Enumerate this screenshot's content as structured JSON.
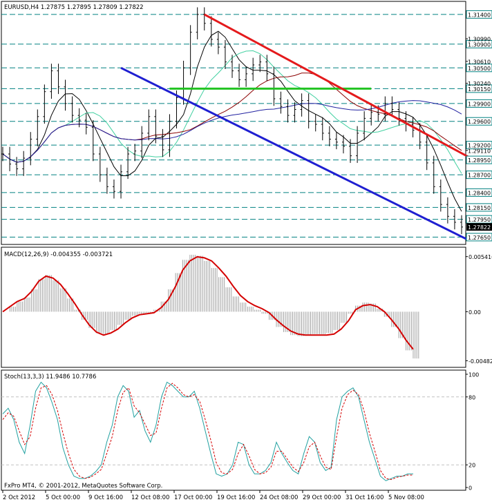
{
  "header": {
    "symbol_line": "EURUSD,H4  1.27875 1.27895 1.27809 1.27822"
  },
  "footer": {
    "copyright": "FxPro MT4, © 2001-2012, MetaQuotes Software Corp."
  },
  "colors": {
    "background": "#ffffff",
    "candles": "#000000",
    "level_lines": "#008080",
    "resistance_line": "#e41a1c",
    "support_line": "#1f1fd1",
    "horizontal_green": "#22c322",
    "macd_signal": "#d40000",
    "macd_histogram": "#a0a0a0",
    "stoch_main": "#20a0a0",
    "stoch_signal": "#d40000",
    "ma_fast": "#000000",
    "ma_red": "#8b0000",
    "ma_blue": "#2020a0",
    "ma_green": "#40d0a0"
  },
  "chart_data": [
    {
      "type": "line",
      "name": "EURUSD,H4",
      "ylim": [
        1.2755,
        1.3155
      ],
      "price_labels": [
        "1.31400",
        "1.30990",
        "1.30900",
        "1.30610",
        "1.30500",
        "1.30240",
        "1.30150",
        "1.29900",
        "1.29600",
        "1.29110",
        "1.29200",
        "1.28950",
        "1.28700",
        "1.28400",
        "1.28150",
        "1.27950",
        "1.27822",
        "1.27650"
      ],
      "boxed_levels": [
        {
          "value": 1.314,
          "label": "1.31400"
        },
        {
          "value": 1.309,
          "label": "1.30900"
        },
        {
          "value": 1.305,
          "label": "1.30500"
        },
        {
          "value": 1.3015,
          "label": "1.30150"
        },
        {
          "value": 1.299,
          "label": "1.29900"
        },
        {
          "value": 1.296,
          "label": "1.29600"
        },
        {
          "value": 1.292,
          "label": "1.29200"
        },
        {
          "value": 1.2895,
          "label": "1.28950"
        },
        {
          "value": 1.287,
          "label": "1.28700"
        },
        {
          "value": 1.284,
          "label": "1.28400"
        },
        {
          "value": 1.2815,
          "label": "1.28150"
        },
        {
          "value": 1.2795,
          "label": "1.27950"
        },
        {
          "value": 1.2765,
          "label": "1.27650"
        }
      ],
      "plain_ticks": [
        {
          "value": 1.3099,
          "label": "1.30990"
        },
        {
          "value": 1.3061,
          "label": "1.30610"
        },
        {
          "value": 1.3024,
          "label": "1.30240"
        },
        {
          "value": 1.2911,
          "label": "1.29110"
        }
      ],
      "current_price": {
        "value": 1.27822,
        "label": "1.27822"
      },
      "close_series": [
        1.2905,
        1.2888,
        1.288,
        1.2898,
        1.293,
        1.2968,
        1.301,
        1.3045,
        1.3018,
        1.299,
        1.297,
        1.2962,
        1.295,
        1.2905,
        1.287,
        1.285,
        1.2842,
        1.2875,
        1.2905,
        1.291,
        1.294,
        1.2968,
        1.2935,
        1.2912,
        1.296,
        1.3,
        1.305,
        1.311,
        1.314,
        1.3125,
        1.3098,
        1.3085,
        1.306,
        1.3045,
        1.303,
        1.304,
        1.3055,
        1.306,
        1.304,
        1.2998,
        1.2985,
        1.297,
        1.298,
        1.2995,
        1.296,
        1.2955,
        1.294,
        1.293,
        1.2925,
        1.2918,
        1.2902,
        1.294,
        1.2965,
        1.2975,
        1.2972,
        1.299,
        1.298,
        1.2965,
        1.2955,
        1.2945,
        1.2925,
        1.289,
        1.285,
        1.282,
        1.28,
        1.279,
        1.2782
      ],
      "resistance_line": [
        {
          "i": 29,
          "v": 1.314
        },
        {
          "i": 67,
          "v": 1.29
        }
      ],
      "support_line": [
        {
          "i": 17,
          "v": 1.305
        },
        {
          "i": 67,
          "v": 1.276
        }
      ],
      "horizontal_line": [
        {
          "i": 24,
          "v": 1.3015
        },
        {
          "i": 53,
          "v": 1.3015
        }
      ]
    },
    {
      "type": "line",
      "name": "MACD(12,26,9)",
      "title": "MACD(12,26,9) -0.004355 -0.003721",
      "ylim": [
        -0.0052,
        0.0058
      ],
      "tick_labels": [
        "0.005416",
        "0.00",
        "-0.004821"
      ],
      "signal": [
        0.0,
        0.0005,
        0.001,
        0.0013,
        0.002,
        0.003,
        0.0035,
        0.0033,
        0.0027,
        0.0018,
        0.0008,
        -0.0003,
        -0.0013,
        -0.002,
        -0.0023,
        -0.0021,
        -0.0017,
        -0.0011,
        -0.0006,
        -0.0003,
        -0.0002,
        -0.0001,
        0.0004,
        0.0012,
        0.0025,
        0.0041,
        0.005,
        0.0054,
        0.0053,
        0.005,
        0.0043,
        0.0035,
        0.0025,
        0.0016,
        0.001,
        0.0006,
        0.0003,
        -0.0001,
        -0.0008,
        -0.0014,
        -0.0019,
        -0.0022,
        -0.0023,
        -0.0023,
        -0.0023,
        -0.0023,
        -0.0022,
        -0.0017,
        -0.0009,
        0.0002,
        0.0006,
        0.0007,
        0.0005,
        0.0,
        -0.0008,
        -0.0017,
        -0.0028,
        -0.0037
      ],
      "histogram": [
        0.0,
        0.0005,
        0.001,
        0.0014,
        0.0022,
        0.0032,
        0.0036,
        0.0031,
        0.0023,
        0.0013,
        0.0002,
        -0.0008,
        -0.0016,
        -0.0021,
        -0.0022,
        -0.0018,
        -0.0013,
        -0.0008,
        -0.0004,
        -0.0002,
        -0.0001,
        0.0002,
        0.001,
        0.0022,
        0.0038,
        0.0051,
        0.0056,
        0.0055,
        0.005,
        0.0043,
        0.0034,
        0.0024,
        0.0015,
        0.0009,
        0.0005,
        0.0002,
        -0.0002,
        -0.0008,
        -0.0015,
        -0.002,
        -0.0023,
        -0.0024,
        -0.0023,
        -0.0022,
        -0.0022,
        -0.0021,
        -0.0018,
        -0.0011,
        -0.0002,
        0.0006,
        0.0009,
        0.0008,
        0.0003,
        -0.0005,
        -0.0015,
        -0.0026,
        -0.0038,
        -0.0046
      ]
    },
    {
      "type": "line",
      "name": "Stoch(13,3,3)",
      "title": "Stoch(13,3,3) 11.9486 10.7786",
      "ylim": [
        0,
        100
      ],
      "tick_labels": [
        "100",
        "80",
        "20",
        "0"
      ],
      "main": [
        65,
        70,
        60,
        40,
        30,
        55,
        85,
        93,
        88,
        75,
        60,
        35,
        20,
        10,
        8,
        8,
        10,
        14,
        20,
        40,
        55,
        80,
        90,
        85,
        62,
        68,
        50,
        40,
        55,
        80,
        93,
        90,
        85,
        80,
        80,
        85,
        70,
        50,
        30,
        12,
        10,
        12,
        20,
        40,
        38,
        20,
        12,
        12,
        15,
        22,
        40,
        30,
        22,
        15,
        12,
        30,
        45,
        40,
        22,
        15,
        18,
        60,
        80,
        85,
        88,
        80,
        60,
        40,
        25,
        10,
        6,
        8,
        10,
        10,
        12,
        12
      ],
      "signal": [
        60,
        66,
        63,
        50,
        38,
        45,
        70,
        88,
        90,
        82,
        68,
        48,
        30,
        16,
        10,
        8,
        9,
        12,
        16,
        30,
        45,
        68,
        84,
        88,
        72,
        66,
        56,
        46,
        48,
        70,
        88,
        92,
        88,
        82,
        80,
        82,
        76,
        60,
        42,
        22,
        13,
        12,
        16,
        30,
        38,
        28,
        16,
        12,
        13,
        18,
        32,
        32,
        25,
        18,
        14,
        22,
        36,
        40,
        28,
        18,
        16,
        45,
        70,
        82,
        86,
        82,
        68,
        48,
        32,
        15,
        8,
        7,
        9,
        10,
        11,
        11
      ]
    }
  ],
  "time_axis": {
    "labels": [
      "2 Oct 2012",
      "5 Oct 00:00",
      "9 Oct 16:00",
      "12 Oct 08:00",
      "17 Oct 00:00",
      "19 Oct 16:00",
      "24 Oct 08:00",
      "29 Oct 00:00",
      "31 Oct 16:00",
      "5 Nov 08:00"
    ]
  }
}
